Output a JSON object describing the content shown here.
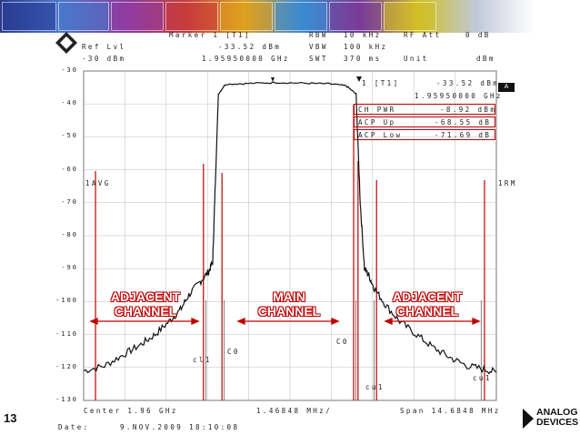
{
  "header": {
    "marker_title": "Marker 1 [T1]",
    "ref_lvl_label": "Ref Lvl",
    "ref_lvl_value": "-30 dBm",
    "marker_level": "-33.52 dBm",
    "marker_freq": "1.95950000 GHz",
    "rbw_label": "RBW",
    "rbw_value": "10 kHz",
    "vbw_label": "VBW",
    "vbw_value": "100 kHz",
    "swt_label": "SWT",
    "swt_value": "370 ms",
    "rf_att_label": "RF Att",
    "rf_att_value": "0 dB",
    "unit_label": "Unit",
    "unit_value": "dBm"
  },
  "readout": {
    "marker_tag": "1 [T1]",
    "level": "-33.52 dBm",
    "freq": "1.95950000 GHz",
    "ch_pwr_label": "CH PWR",
    "ch_pwr_value": "-8.92 dBm",
    "acp_up_label": "ACP Up",
    "acp_up_value": "-68.55 dB",
    "acp_low_label": "ACP Low",
    "acp_low_value": "-71.69 dB"
  },
  "side_labels": {
    "avg": "1AVG",
    "rm": "1RM",
    "a_badge": "A"
  },
  "channel_markers": {
    "cl1": "cl1",
    "c0_left": "C0",
    "c0_right": "C0",
    "cu1_inner": "cu1",
    "cu1_outer": "cu1"
  },
  "annotations": {
    "adjacent_left": [
      "ADJACENT",
      "CHANNEL"
    ],
    "main": [
      "MAIN",
      "CHANNEL"
    ],
    "adjacent_right": [
      "ADJACENT",
      "CHANNEL"
    ]
  },
  "footer": {
    "center": "Center 1.96 GHz",
    "division": "1.46848 MHz/",
    "span": "Span 14.6848 MHz",
    "date_label": "Date:",
    "date_value": "9.NOV.2009  18:10:08"
  },
  "slide_number": "13",
  "logo": [
    "ANALOG",
    "DEVICES"
  ],
  "chart_data": {
    "type": "line",
    "xlabel": "",
    "ylabel": "",
    "center_ghz": 1.96,
    "span_mhz": 14.6848,
    "x_mhz_offset": [
      -7.34,
      -6.6,
      -5.9,
      -5.3,
      -4.8,
      -4.3,
      -3.9,
      -3.6,
      -3.2,
      -2.9,
      -2.75,
      -2.68,
      -2.55,
      -2.3,
      -1.5,
      -0.5,
      0.5,
      1.4,
      2.0,
      2.35,
      2.5,
      2.65,
      2.8,
      3.0,
      3.4,
      3.9,
      4.5,
      5.1,
      5.7,
      6.3,
      6.9,
      7.34
    ],
    "y_dbm": [
      -121,
      -119.5,
      -116,
      -113,
      -110,
      -106,
      -102.5,
      -98,
      -94,
      -91,
      -88,
      -70,
      -37,
      -34,
      -33.8,
      -33.5,
      -33.7,
      -33.9,
      -34.5,
      -37,
      -70,
      -90,
      -92,
      -96,
      -101,
      -106,
      -110,
      -114,
      -117,
      -119.5,
      -120.5,
      -121.5
    ],
    "ylim": [
      -130,
      -30
    ],
    "y_ticks": [
      -30,
      -40,
      -50,
      -60,
      -70,
      -80,
      -90,
      -100,
      -110,
      -120,
      -130
    ],
    "grid": true
  },
  "colors": {
    "trace": "#111111",
    "channel_line": "#c00000",
    "grid": "#bdbdbd"
  }
}
